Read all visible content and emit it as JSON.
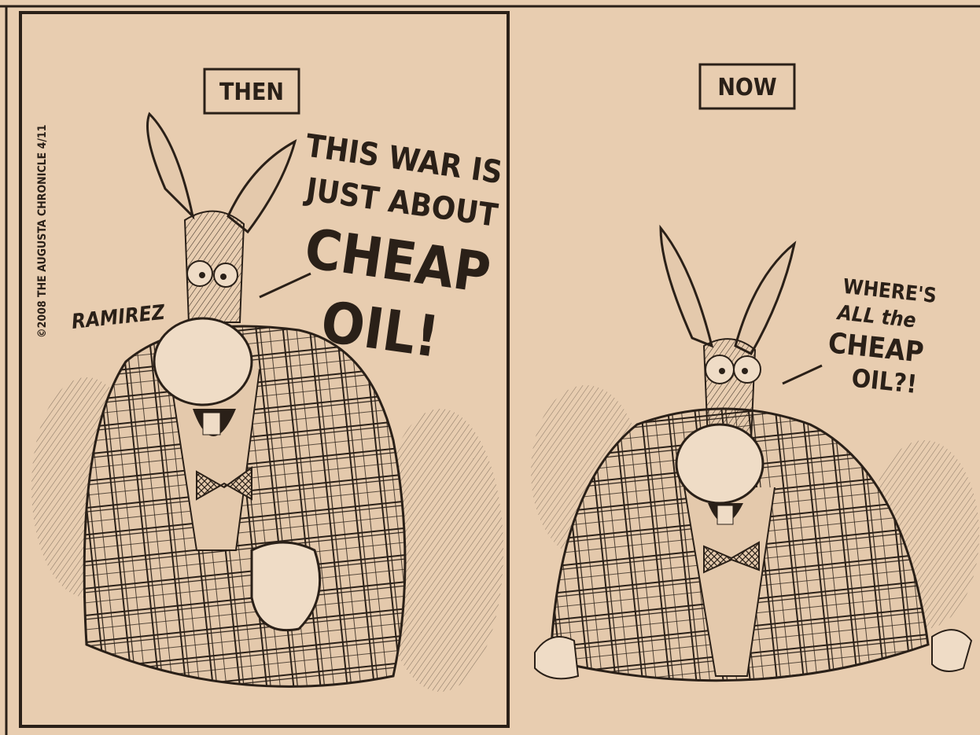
{
  "panels": [
    {
      "label": "THEN",
      "speech": [
        "THIS WAR IS",
        "JUST ABOUT",
        "CHEAP",
        "OIL!"
      ]
    },
    {
      "label": "NOW",
      "speech": [
        "WHERE'S",
        "ALL the",
        "CHEAP",
        "OIL?!"
      ]
    }
  ],
  "credit": "©2008 THE AUGUSTA CHRONICLE 4/11",
  "signature": "RAMIREZ"
}
